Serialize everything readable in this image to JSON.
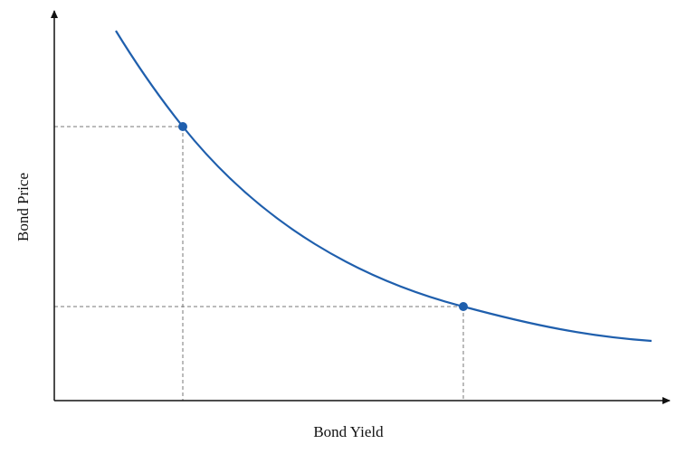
{
  "axes": {
    "x_label": "Bond Yield",
    "y_label": "Bond Price"
  }
}
